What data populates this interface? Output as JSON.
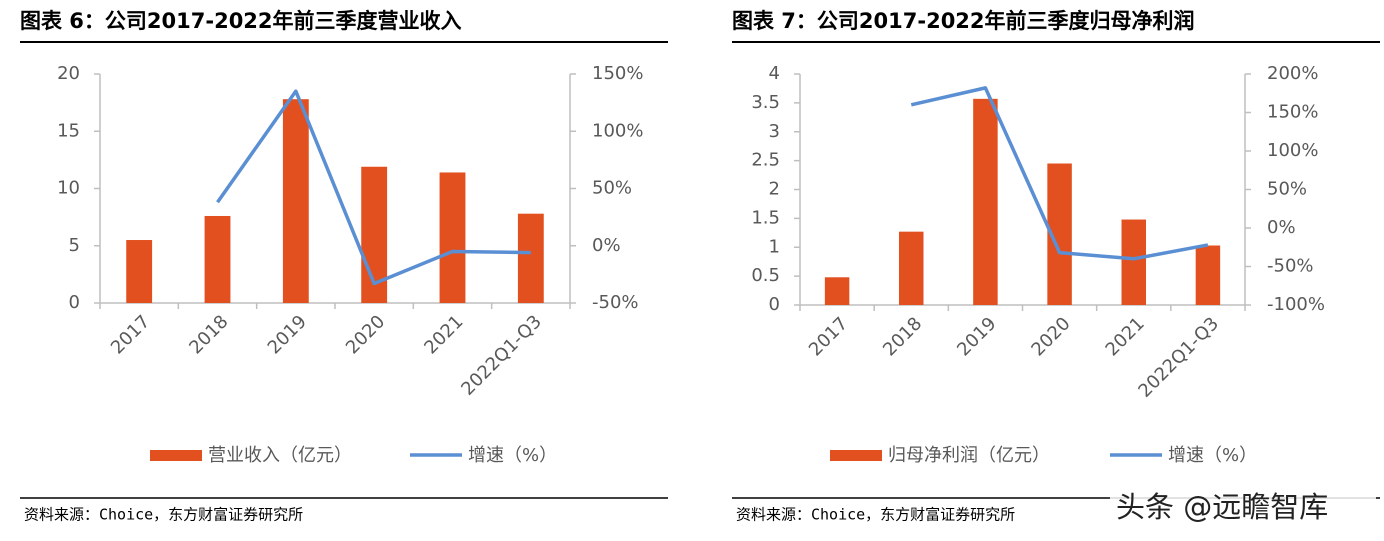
{
  "chart_data": [
    {
      "type": "bar",
      "title": "图表 6：公司2017-2022年前三季度营业收入",
      "categories": [
        "2017",
        "2018",
        "2019",
        "2020",
        "2021",
        "2022Q1-Q3"
      ],
      "series": [
        {
          "name": "营业收入（亿元）",
          "color": "#e2501f",
          "type": "bar",
          "values": [
            5.5,
            7.6,
            17.8,
            11.9,
            11.4,
            7.8
          ]
        },
        {
          "name": "增速（%）",
          "color": "#5b8fd4",
          "type": "line",
          "axis": "y2",
          "values": [
            null,
            38,
            135,
            -33,
            -5,
            -6
          ]
        }
      ],
      "ylim": [
        0,
        20
      ],
      "yticks": [
        0,
        5,
        10,
        15,
        20
      ],
      "y2lim": [
        -50,
        150
      ],
      "y2ticks": [
        {
          "value": -50,
          "label": "-50%"
        },
        {
          "value": 0,
          "label": "0%"
        },
        {
          "value": 50,
          "label": "50%"
        },
        {
          "value": 100,
          "label": "100%"
        },
        {
          "value": 150,
          "label": "150%"
        }
      ],
      "source": "资料来源：Choice，东方财富证券研究所"
    },
    {
      "type": "bar",
      "title": "图表 7：公司2017-2022年前三季度归母净利润",
      "categories": [
        "2017",
        "2018",
        "2019",
        "2020",
        "2021",
        "2022Q1-Q3"
      ],
      "series": [
        {
          "name": "归母净利润（亿元）",
          "color": "#e2501f",
          "type": "bar",
          "values": [
            0.48,
            1.27,
            3.57,
            2.45,
            1.48,
            1.03
          ]
        },
        {
          "name": "增速（%）",
          "color": "#5b8fd4",
          "type": "line",
          "axis": "y2",
          "values": [
            null,
            160,
            182,
            -32,
            -40,
            -22
          ]
        }
      ],
      "ylim": [
        0,
        4
      ],
      "yticks": [
        0,
        0.5,
        1,
        1.5,
        2,
        2.5,
        3,
        3.5,
        4
      ],
      "y2lim": [
        -100,
        200
      ],
      "y2ticks": [
        {
          "value": -100,
          "label": "-100%"
        },
        {
          "value": -50,
          "label": "-50%"
        },
        {
          "value": 0,
          "label": "0%"
        },
        {
          "value": 50,
          "label": "50%"
        },
        {
          "value": 100,
          "label": "100%"
        },
        {
          "value": 150,
          "label": "150%"
        },
        {
          "value": 200,
          "label": "200%"
        }
      ],
      "source": "资料来源：Choice，东方财富证券研究所"
    }
  ],
  "watermark": "头条 @远瞻智库"
}
